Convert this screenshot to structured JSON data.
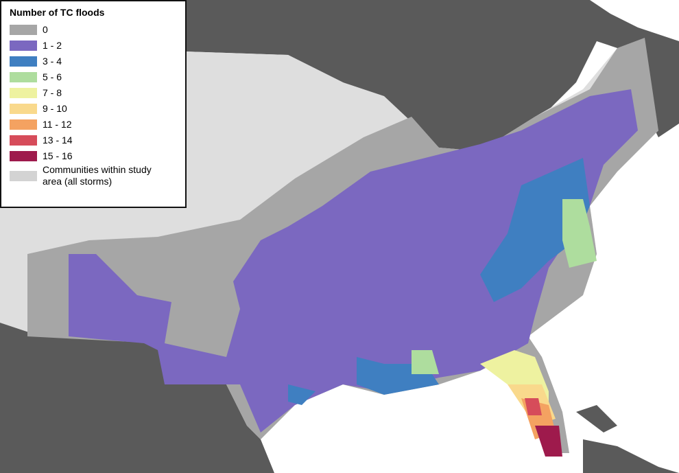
{
  "legend": {
    "title": "Number of TC floods",
    "items": [
      {
        "label": "0",
        "color": "#a6a6a6"
      },
      {
        "label": "1 - 2",
        "color": "#7b68c0"
      },
      {
        "label": "3 - 4",
        "color": "#3f7fc1"
      },
      {
        "label": "5 - 6",
        "color": "#aedd9e"
      },
      {
        "label": "7 - 8",
        "color": "#eef2a0"
      },
      {
        "label": "9 - 10",
        "color": "#f9d98c"
      },
      {
        "label": "11 - 12",
        "color": "#f4a261"
      },
      {
        "label": "13 - 14",
        "color": "#d64c5a"
      },
      {
        "label": "15 - 16",
        "color": "#9e1a4c"
      },
      {
        "label": "Communities within study area (all storms)",
        "color": "#d3d3d3"
      }
    ]
  }
}
